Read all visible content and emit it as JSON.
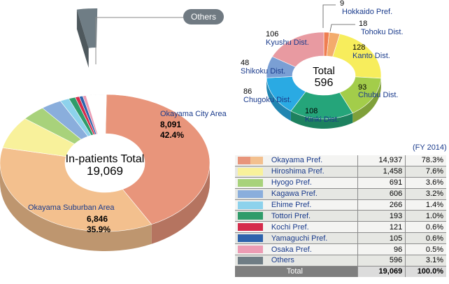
{
  "chart_data": [
    {
      "type": "pie",
      "title": "In-patients Total",
      "total": "19,069",
      "callout": "Others",
      "slices": [
        {
          "label": "Okayama City Area",
          "value": 8091,
          "value_text": "8,091",
          "percent_text": "42.4%",
          "color": "#e8957b"
        },
        {
          "label": "Okayama Suburban Area",
          "value": 6846,
          "value_text": "6,846",
          "percent_text": "35.9%",
          "color": "#f3c08e"
        },
        {
          "value": 1458,
          "color": "#f8f19b"
        },
        {
          "value": 691,
          "color": "#a8d27b"
        },
        {
          "value": 606,
          "color": "#8aaedc"
        },
        {
          "value": 266,
          "color": "#8dd2ec"
        },
        {
          "value": 193,
          "color": "#2f9c6a"
        },
        {
          "value": 121,
          "color": "#d52c4c"
        },
        {
          "value": 105,
          "color": "#2d63ac"
        },
        {
          "value": 96,
          "color": "#ec9cb4"
        },
        {
          "value": 596,
          "color": "#6f7d85"
        }
      ]
    },
    {
      "type": "pie",
      "title": "Total",
      "total": "596",
      "slices": [
        {
          "label": "Hokkaido Pref.",
          "value": 9,
          "color": "#ef7e52"
        },
        {
          "label": "Tohoku Dist.",
          "value": 18,
          "color": "#f3ab6c"
        },
        {
          "label": "Kanto Dist.",
          "value": 128,
          "color": "#f7ed5c"
        },
        {
          "label": "Chubu Dist.",
          "value": 93,
          "color": "#a3cd4a"
        },
        {
          "label": "Kinki Dist.",
          "value": 108,
          "color": "#25a57a"
        },
        {
          "label": "Chugoku Dist.",
          "value": 86,
          "color": "#2aaae3"
        },
        {
          "label": "Shikoku Dist.",
          "value": 48,
          "color": "#7a9fd4"
        },
        {
          "label": "Kyushu Dist.",
          "value": 106,
          "color": "#e89aa1"
        }
      ]
    },
    {
      "type": "table",
      "note": "(FY 2014)",
      "rows": [
        {
          "label": "Okayama Pref.",
          "count": "14,937",
          "percent": "78.3%",
          "color": "#e8957b",
          "color2": "#f3c08e"
        },
        {
          "label": "Hiroshima Pref.",
          "count": "1,458",
          "percent": "7.6%",
          "color": "#f8f19b"
        },
        {
          "label": "Hyogo Pref.",
          "count": "691",
          "percent": "3.6%",
          "color": "#a8d27b"
        },
        {
          "label": "Kagawa Pref.",
          "count": "606",
          "percent": "3.2%",
          "color": "#8aaedc"
        },
        {
          "label": "Ehime Pref.",
          "count": "266",
          "percent": "1.4%",
          "color": "#8dd2ec"
        },
        {
          "label": "Tottori Pref.",
          "count": "193",
          "percent": "1.0%",
          "color": "#2f9c6a"
        },
        {
          "label": "Kochi Pref.",
          "count": "121",
          "percent": "0.6%",
          "color": "#d52c4c"
        },
        {
          "label": "Yamaguchi Pref.",
          "count": "105",
          "percent": "0.6%",
          "color": "#2d63ac"
        },
        {
          "label": "Osaka Pref.",
          "count": "96",
          "percent": "0.5%",
          "color": "#ec9cb4"
        },
        {
          "label": "Others",
          "count": "596",
          "percent": "3.1%",
          "color": "#6f7d85"
        }
      ],
      "total": {
        "label": "Total",
        "count": "19,069",
        "percent": "100.0%"
      }
    }
  ]
}
